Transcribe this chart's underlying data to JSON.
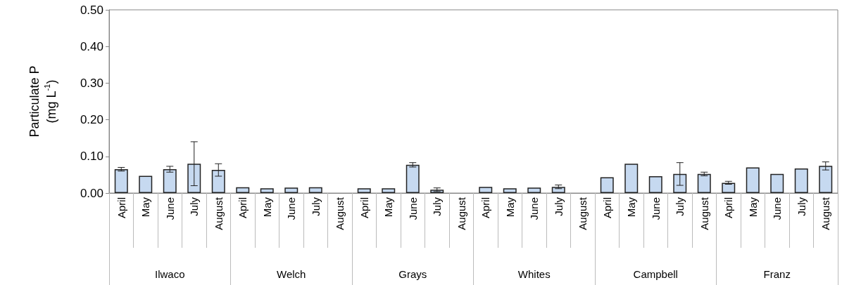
{
  "chart_data": {
    "type": "bar",
    "ylabel": "Particulate P\n(mg L$^{-1}$)",
    "categories": [
      "April",
      "May",
      "June",
      "July",
      "August",
      "April",
      "May",
      "June",
      "July",
      "August",
      "April",
      "May",
      "June",
      "July",
      "August",
      "April",
      "May",
      "June",
      "July",
      "August",
      "April",
      "May",
      "June",
      "July",
      "August",
      "April",
      "May",
      "June",
      "July",
      "August"
    ],
    "annotations": [
      "Ilwaco",
      "Welch",
      "Grays",
      "Whites",
      "Campbell",
      "Franz"
    ],
    "series": [
      {
        "color": "#c6d9f0",
        "values": [
          0.065,
          0.047,
          0.065,
          0.08,
          0.063,
          0.016,
          0.013,
          0.015,
          0.016,
          null,
          0.013,
          0.013,
          0.077,
          0.009,
          null,
          0.017,
          0.013,
          0.015,
          0.017,
          null,
          0.043,
          0.08,
          0.046,
          0.052,
          0.052,
          0.028,
          0.07,
          0.052,
          0.067,
          0.074
        ],
        "errors": [
          0.005,
          null,
          0.008,
          0.06,
          0.017,
          null,
          null,
          null,
          null,
          null,
          null,
          null,
          0.006,
          0.005,
          null,
          null,
          null,
          null,
          0.005,
          null,
          null,
          null,
          null,
          0.031,
          0.005,
          0.004,
          null,
          null,
          null,
          0.011
        ]
      }
    ],
    "ylim": [
      0,
      0.5
    ],
    "yticks": [
      {
        "value": 0,
        "label": "0.00"
      },
      {
        "value": 0.1,
        "label": "0.10"
      },
      {
        "value": 0.2,
        "label": "0.20"
      },
      {
        "value": 0.3,
        "label": "0.30"
      },
      {
        "value": 0.4,
        "label": "0.40"
      },
      {
        "value": 0.5,
        "label": "0.50"
      }
    ],
    "grid": false
  }
}
